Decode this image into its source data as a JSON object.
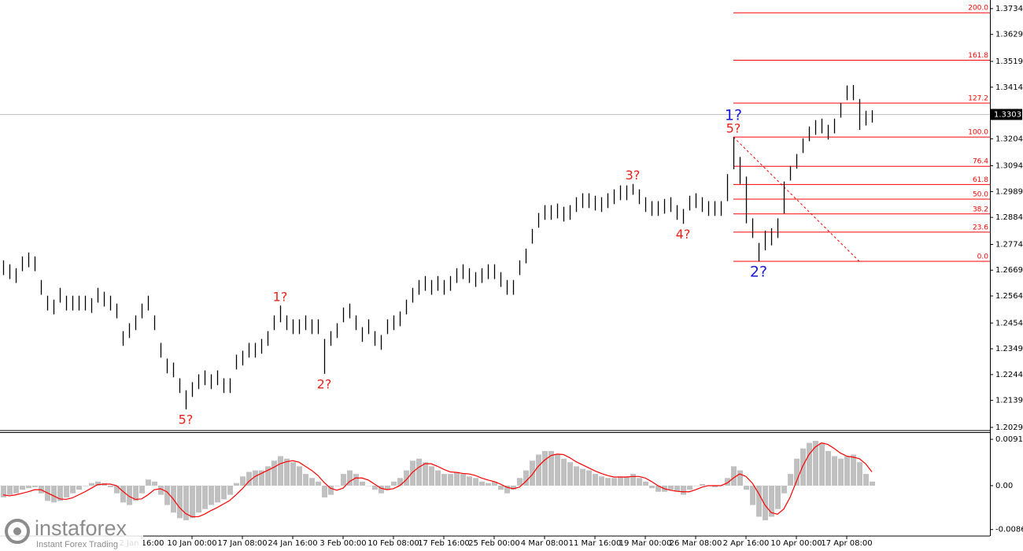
{
  "chart_data": [
    {
      "type": "ohlc",
      "color": "#000000",
      "categories": [
        null,
        null,
        null,
        null,
        null,
        null,
        null,
        null,
        null,
        null,
        null,
        null,
        null,
        null,
        null,
        null,
        null,
        null,
        null,
        null,
        null,
        null,
        "2 Jan 16:00",
        null,
        null,
        null,
        null,
        null,
        null,
        null,
        "10 Jan 00:00",
        null,
        null,
        null,
        null,
        null,
        null,
        null,
        "17 Jan 08:00",
        null,
        null,
        null,
        null,
        null,
        null,
        null,
        "24 Jan 16:00",
        null,
        null,
        null,
        null,
        null,
        null,
        null,
        "3 Feb 00:00",
        null,
        null,
        null,
        null,
        null,
        null,
        null,
        "10 Feb 08:00",
        null,
        null,
        null,
        null,
        null,
        null,
        null,
        "17 Feb 16:00",
        null,
        null,
        null,
        null,
        null,
        null,
        null,
        "25 Feb 00:00",
        null,
        null,
        null,
        null,
        null,
        null,
        null,
        "4 Mar 08:00",
        null,
        null,
        null,
        null,
        null,
        null,
        null,
        "11 Mar 16:00",
        null,
        null,
        null,
        null,
        null,
        null,
        null,
        "19 Mar 00:00",
        null,
        null,
        null,
        null,
        null,
        null,
        null,
        "26 Mar 08:00",
        null,
        null,
        null,
        null,
        null,
        null,
        null,
        "2 Apr 16:00",
        null,
        null,
        null,
        null,
        null,
        null,
        null,
        "10 Apr 00:00",
        null,
        null,
        null,
        null,
        null,
        null,
        null,
        "17 Apr 08:00",
        null,
        null,
        null,
        null
      ],
      "high": [
        1.2709,
        1.2693,
        1.2677,
        1.2725,
        1.2741,
        1.2725,
        1.2629,
        1.2565,
        1.2549,
        1.2597,
        1.2565,
        1.2565,
        1.2565,
        1.2565,
        1.2555,
        1.2597,
        1.2581,
        1.2565,
        1.2533,
        1.2421,
        1.2453,
        1.2485,
        1.2533,
        1.2565,
        1.2485,
        1.2373,
        1.2309,
        1.2293,
        1.2229,
        1.218,
        1.2213,
        1.2245,
        1.2261,
        1.2245,
        1.2261,
        1.2229,
        1.2229,
        1.2325,
        1.2341,
        1.2373,
        1.2373,
        1.2389,
        1.2421,
        1.2485,
        1.2525,
        1.2485,
        1.2469,
        1.2469,
        1.2485,
        1.2469,
        1.2469,
        1.2389,
        1.2421,
        1.2453,
        1.2517,
        1.2533,
        1.2485,
        1.2437,
        1.2469,
        1.2421,
        1.2405,
        1.2469,
        1.2485,
        1.2501,
        1.2549,
        1.2597,
        1.2629,
        1.2645,
        1.2629,
        1.2645,
        1.2629,
        1.2645,
        1.2677,
        1.2693,
        1.2677,
        1.2661,
        1.2677,
        1.2693,
        1.2693,
        1.2661,
        1.2629,
        1.2629,
        1.2709,
        1.2757,
        1.2837,
        1.2902,
        1.2934,
        1.2934,
        1.294,
        1.2927,
        1.2934,
        1.2966,
        1.2982,
        1.2982,
        1.2972,
        1.2966,
        1.2982,
        1.2998,
        1.3014,
        1.3014,
        1.302,
        1.2998,
        1.2966,
        1.295,
        1.295,
        1.2959,
        1.2966,
        1.2934,
        1.2918,
        1.2972,
        1.2982,
        1.2966,
        1.295,
        1.295,
        1.295,
        1.306,
        1.3211,
        1.313,
        1.305,
        1.288,
        1.278,
        1.283,
        1.284,
        1.288,
        1.303,
        1.3094,
        1.3142,
        1.3206,
        1.3254,
        1.328,
        1.3286,
        1.3261,
        1.3286,
        1.335,
        1.3421,
        1.3423,
        1.3366,
        1.3318,
        1.332
      ],
      "low": [
        1.2649,
        1.2633,
        1.2617,
        1.2665,
        1.2681,
        1.2665,
        1.2569,
        1.2505,
        1.2489,
        1.2537,
        1.2505,
        1.2505,
        1.2505,
        1.2505,
        1.2495,
        1.2537,
        1.2521,
        1.2505,
        1.2473,
        1.2361,
        1.2393,
        1.2425,
        1.2473,
        1.2505,
        1.2425,
        1.2313,
        1.2249,
        1.2233,
        1.2169,
        1.2102,
        1.2153,
        1.2185,
        1.2201,
        1.2185,
        1.2201,
        1.2169,
        1.2169,
        1.2265,
        1.2281,
        1.2313,
        1.2313,
        1.2329,
        1.2361,
        1.2425,
        1.2457,
        1.2425,
        1.2409,
        1.2409,
        1.2425,
        1.2409,
        1.2409,
        1.2247,
        1.2361,
        1.2393,
        1.2457,
        1.2473,
        1.2425,
        1.2377,
        1.2409,
        1.2361,
        1.2345,
        1.2409,
        1.2425,
        1.2441,
        1.2489,
        1.2537,
        1.2569,
        1.2585,
        1.2569,
        1.2585,
        1.2569,
        1.2585,
        1.2617,
        1.2633,
        1.2617,
        1.2601,
        1.2617,
        1.2633,
        1.2633,
        1.2601,
        1.2569,
        1.2569,
        1.2649,
        1.2697,
        1.2777,
        1.2842,
        1.2874,
        1.2874,
        1.288,
        1.2867,
        1.2874,
        1.2906,
        1.2922,
        1.2922,
        1.2912,
        1.2906,
        1.2922,
        1.2938,
        1.2954,
        1.2954,
        1.2976,
        1.2938,
        1.2906,
        1.289,
        1.289,
        1.2899,
        1.2906,
        1.2874,
        1.2858,
        1.2912,
        1.2922,
        1.2906,
        1.289,
        1.289,
        1.289,
        1.295,
        1.308,
        1.302,
        1.286,
        1.28,
        1.2705,
        1.275,
        1.277,
        1.28,
        1.29,
        1.3034,
        1.3082,
        1.3146,
        1.3194,
        1.322,
        1.3226,
        1.3201,
        1.3226,
        1.329,
        1.3361,
        1.3361,
        1.324,
        1.3258,
        1.327
      ],
      "ylim": [
        1.2016,
        1.3769
      ],
      "yticks": [
        1.3734,
        1.3629,
        1.3519,
        1.3414,
        1.3204,
        1.3094,
        1.2989,
        1.2884,
        1.2774,
        1.2669,
        1.2564,
        1.2454,
        1.2349,
        1.2244,
        1.2139,
        1.2029
      ],
      "current_price": 1.3303,
      "fib_color": "#ff0000",
      "fib_levels": [
        {
          "label": "200.0",
          "value": 1.3717
        },
        {
          "label": "161.8",
          "value": 1.3524
        },
        {
          "label": "127.2",
          "value": 1.3349
        },
        {
          "label": "100.0",
          "value": 1.3211
        },
        {
          "label": "76.4",
          "value": 1.3092
        },
        {
          "label": "61.8",
          "value": 1.3018
        },
        {
          "label": "50.0",
          "value": 1.2958
        },
        {
          "label": "38.2",
          "value": 1.2898
        },
        {
          "label": "23.6",
          "value": 1.2824
        },
        {
          "label": "0.0",
          "value": 1.2705
        }
      ],
      "annotations": [
        {
          "text": "5?",
          "color": "#e8221a",
          "bar": 29,
          "side": "below"
        },
        {
          "text": "1?",
          "color": "#e8221a",
          "bar": 44,
          "side": "above"
        },
        {
          "text": "2?",
          "color": "#e8221a",
          "bar": 51,
          "side": "below"
        },
        {
          "text": "3?",
          "color": "#e8221a",
          "bar": 100,
          "side": "above"
        },
        {
          "text": "4?",
          "color": "#e8221a",
          "bar": 108,
          "side": "below"
        },
        {
          "text": "5?",
          "color": "#e8221a",
          "bar": 116,
          "side": "above"
        },
        {
          "text": "1?",
          "color": "#1a1adc",
          "bar": 116,
          "side": "above"
        },
        {
          "text": "2?",
          "color": "#1a1adc",
          "bar": 120,
          "side": "below"
        }
      ]
    },
    {
      "type": "macd",
      "histogram_color": "#c0c0c0",
      "signal_color": "#ff0000",
      "histogram": [
        -0.0023,
        -0.0018,
        -0.0015,
        -0.0008,
        -0.0005,
        -0.0003,
        -0.0015,
        -0.003,
        -0.0033,
        -0.003,
        -0.0023,
        -0.0015,
        -0.0008,
        0,
        0.0005,
        0.0008,
        0.0005,
        -0.0003,
        -0.0015,
        -0.0033,
        -0.0038,
        -0.003,
        -0.0015,
        0.0012,
        0.0008,
        -0.0018,
        -0.0038,
        -0.0053,
        -0.0064,
        -0.0068,
        -0.0064,
        -0.0053,
        -0.0046,
        -0.0038,
        -0.0033,
        -0.0027,
        -0.0018,
        0.0005,
        0.0018,
        0.0027,
        0.003,
        0.003,
        0.0038,
        0.0049,
        0.0058,
        0.0053,
        0.0046,
        0.0038,
        0.0023,
        0.0015,
        0.0008,
        -0.0023,
        -0.0018,
        0,
        0.0023,
        0.003,
        0.0023,
        0.0008,
        0,
        -0.0008,
        -0.0015,
        -0.0008,
        0.0008,
        0.0015,
        0.003,
        0.0049,
        0.0053,
        0.0046,
        0.0038,
        0.003,
        0.0023,
        0.0023,
        0.0027,
        0.0023,
        0.0018,
        0.0015,
        0.0008,
        0.0005,
        0.0008,
        -0.0008,
        -0.0015,
        -0.0008,
        0.0015,
        0.003,
        0.0049,
        0.0061,
        0.0068,
        0.0068,
        0.0061,
        0.0053,
        0.0046,
        0.0038,
        0.0033,
        0.003,
        0.0023,
        0.0018,
        0.0015,
        0.0015,
        0.0018,
        0.0018,
        0.0023,
        0.0015,
        0.0008,
        -0.0005,
        -0.0012,
        -0.0012,
        -0.0008,
        -0.0012,
        -0.0018,
        -0.0008,
        0,
        0.0003,
        0,
        -0.0003,
        0,
        0.0015,
        0.0038,
        0.003,
        -0.0008,
        -0.0038,
        -0.0061,
        -0.0068,
        -0.0061,
        -0.0046,
        -0.0015,
        0.0023,
        0.0053,
        0.0073,
        0.0084,
        0.0088,
        0.0084,
        0.0068,
        0.0058,
        0.0053,
        0.0058,
        0.0061,
        0.0046,
        0.0023,
        0.0008
      ],
      "signal": [
        -0.0018,
        -0.002,
        -0.0018,
        -0.0015,
        -0.0012,
        -0.0008,
        -0.0008,
        -0.0014,
        -0.002,
        -0.0026,
        -0.0027,
        -0.0024,
        -0.0018,
        -0.0012,
        -0.0005,
        0.0002,
        0.0003,
        0.0003,
        0,
        -0.0011,
        -0.0021,
        -0.0027,
        -0.0026,
        -0.0018,
        -0.0008,
        -0.0006,
        -0.0012,
        -0.0026,
        -0.0043,
        -0.0055,
        -0.0061,
        -0.0061,
        -0.0056,
        -0.0049,
        -0.0043,
        -0.0036,
        -0.0029,
        -0.0018,
        -0.0006,
        0.0008,
        0.0018,
        0.0024,
        0.003,
        0.0036,
        0.0043,
        0.0047,
        0.0049,
        0.0046,
        0.0038,
        0.003,
        0.002,
        0.0006,
        -0.0005,
        -0.0009,
        -0.0005,
        0.0008,
        0.0015,
        0.0015,
        0.0011,
        0.0003,
        -0.0005,
        -0.0008,
        -0.0006,
        0,
        0.0011,
        0.0026,
        0.0036,
        0.0043,
        0.0043,
        0.0038,
        0.0032,
        0.0027,
        0.0026,
        0.0024,
        0.0023,
        0.002,
        0.0015,
        0.0011,
        0.0008,
        0.0003,
        -0.0003,
        -0.0006,
        -0.0003,
        0.0008,
        0.0021,
        0.0038,
        0.005,
        0.0059,
        0.0062,
        0.0061,
        0.0055,
        0.0047,
        0.0041,
        0.0035,
        0.0029,
        0.0024,
        0.002,
        0.0017,
        0.0017,
        0.0017,
        0.0018,
        0.0018,
        0.0015,
        0.0008,
        0,
        -0.0006,
        -0.0009,
        -0.0011,
        -0.0012,
        -0.0012,
        -0.0008,
        -0.0003,
        0,
        0,
        0,
        0.0005,
        0.0015,
        0.0023,
        0.0018,
        0.0005,
        -0.0015,
        -0.0038,
        -0.0053,
        -0.0056,
        -0.0046,
        -0.0023,
        0.0008,
        0.0038,
        0.0061,
        0.0076,
        0.0084,
        0.0081,
        0.0073,
        0.0064,
        0.0058,
        0.0056,
        0.0053,
        0.0043,
        0.0027
      ],
      "ylim": [
        -0.0099,
        0.0102
      ],
      "yticks": [
        0.0091,
        {
          "value": 0,
          "label": "0.00"
        },
        -0.00862
      ]
    }
  ],
  "branding": {
    "name": "instaforex",
    "tagline": "Instant Forex Trading"
  }
}
